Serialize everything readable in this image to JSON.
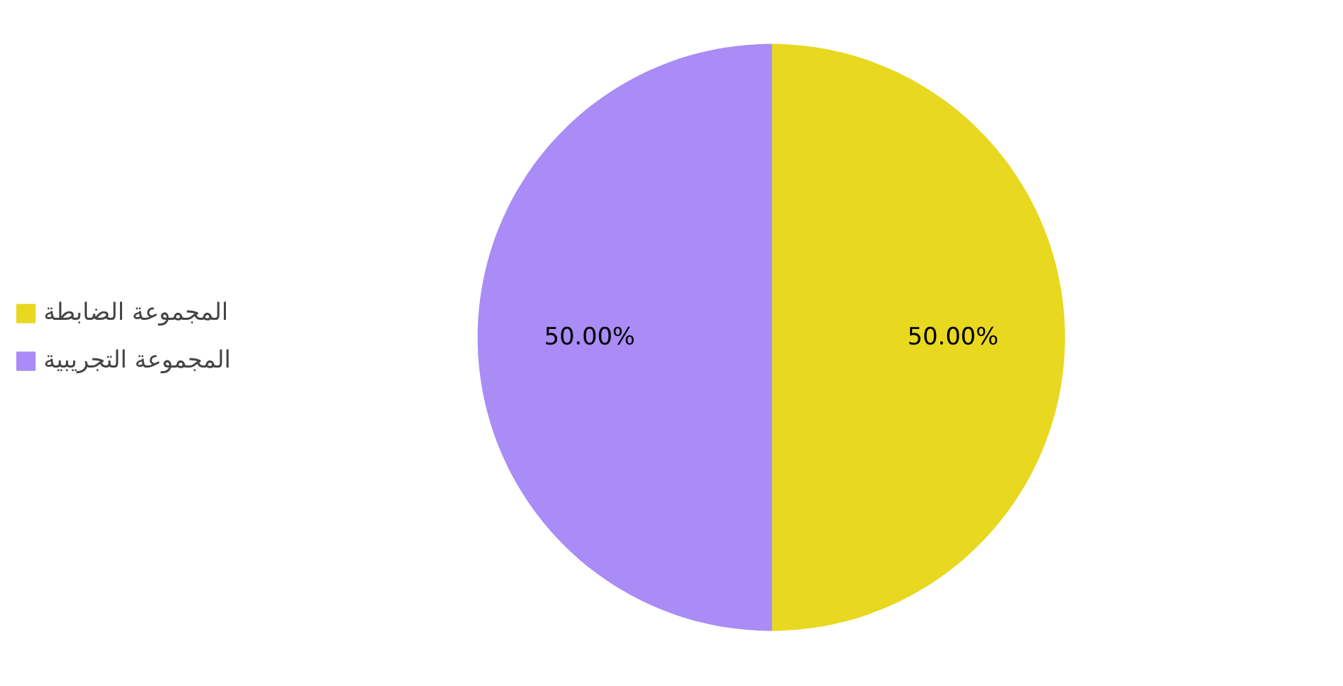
{
  "chart_data": {
    "type": "pie",
    "categories": [
      "المجموعة الضابطة",
      "المجموعة التجريبية"
    ],
    "values": [
      50,
      50
    ],
    "colors": [
      "#e8d820",
      "#a98cf5"
    ],
    "value_labels": [
      "50.00%",
      "50.00%"
    ],
    "legend": "left"
  }
}
